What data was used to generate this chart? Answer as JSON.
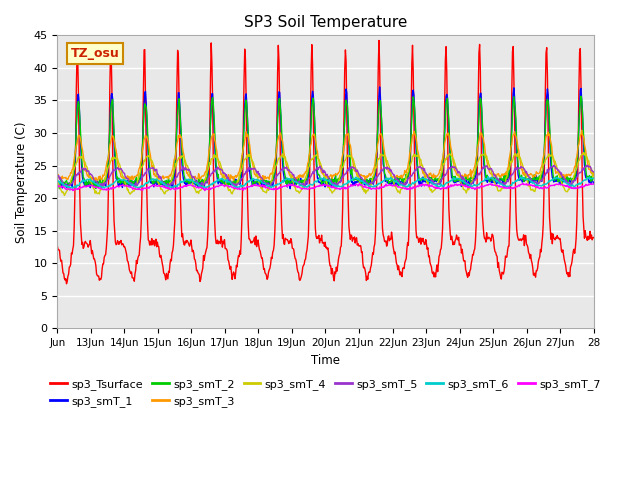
{
  "title": "SP3 Soil Temperature",
  "xlabel": "Time",
  "ylabel": "Soil Temperature (C)",
  "ylim": [
    0,
    45
  ],
  "yticks": [
    0,
    5,
    10,
    15,
    20,
    25,
    30,
    35,
    40,
    45
  ],
  "background_color": "#ffffff",
  "plot_bg_color": "#e8e8e8",
  "tz_label": "TZ_osu",
  "series_colors": {
    "sp3_Tsurface": "#ff0000",
    "sp3_smT_1": "#0000ff",
    "sp3_smT_2": "#00cc00",
    "sp3_smT_3": "#ff9900",
    "sp3_smT_4": "#cccc00",
    "sp3_smT_5": "#9933cc",
    "sp3_smT_6": "#00cccc",
    "sp3_smT_7": "#ff00ff"
  },
  "legend_order": [
    "sp3_Tsurface",
    "sp3_smT_1",
    "sp3_smT_2",
    "sp3_smT_3",
    "sp3_smT_4",
    "sp3_smT_5",
    "sp3_smT_6",
    "sp3_smT_7"
  ],
  "start_day": 12,
  "end_day": 28,
  "x_tick_days": [
    12,
    13,
    14,
    15,
    16,
    17,
    18,
    19,
    20,
    21,
    22,
    23,
    24,
    25,
    26,
    27,
    28
  ],
  "x_tick_labels": [
    "Jun",
    "13Jun",
    "14Jun",
    "15Jun",
    "16Jun",
    "17Jun",
    "18Jun",
    "19Jun",
    "20Jun",
    "21Jun",
    "22Jun",
    "23Jun",
    "24Jun",
    "25Jun",
    "26Jun",
    "27Jun",
    "28"
  ]
}
